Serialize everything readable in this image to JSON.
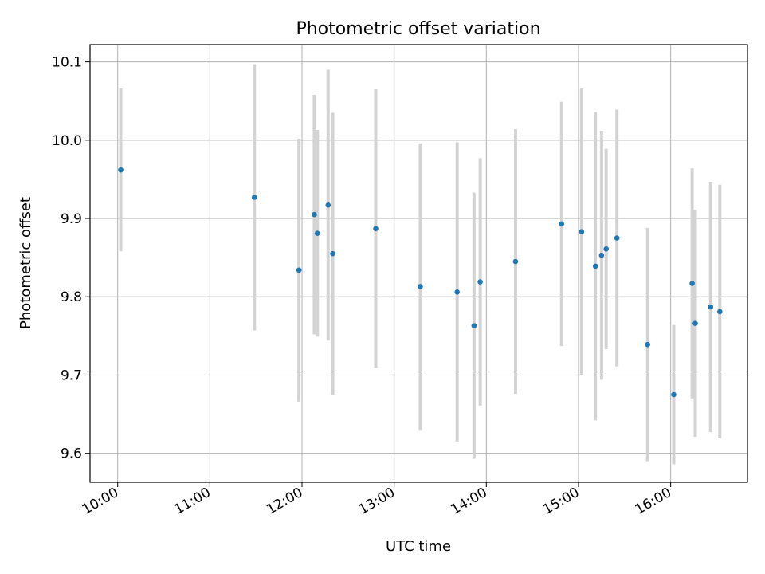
{
  "chart_data": {
    "type": "scatter",
    "title": "Photometric offset variation",
    "xlabel": "UTC time",
    "ylabel": "Photometric offset",
    "x_unit": "hours UTC",
    "xlim": [
      "09:42",
      "16:50"
    ],
    "ylim": [
      9.563,
      10.122
    ],
    "x_ticks": [
      "10:00",
      "11:00",
      "12:00",
      "13:00",
      "14:00",
      "15:00",
      "16:00"
    ],
    "y_ticks": [
      "9.6",
      "9.7",
      "9.8",
      "9.9",
      "10.0",
      "10.1"
    ],
    "grid": true,
    "colors": {
      "point": "#1f77b4",
      "errorbar": "#d3d3d3",
      "grid": "#b0b0b0"
    },
    "points": [
      {
        "t": "10:02",
        "y": 9.962,
        "err": 0.104
      },
      {
        "t": "11:29",
        "y": 9.927,
        "err": 0.17
      },
      {
        "t": "11:58",
        "y": 9.834,
        "err": 0.168
      },
      {
        "t": "12:08",
        "y": 9.905,
        "err": 0.153
      },
      {
        "t": "12:10",
        "y": 9.881,
        "err": 0.132
      },
      {
        "t": "12:17",
        "y": 9.917,
        "err": 0.173
      },
      {
        "t": "12:20",
        "y": 9.855,
        "err": 0.18
      },
      {
        "t": "12:48",
        "y": 9.887,
        "err": 0.178
      },
      {
        "t": "13:17",
        "y": 9.813,
        "err": 0.183
      },
      {
        "t": "13:41",
        "y": 9.806,
        "err": 0.191
      },
      {
        "t": "13:52",
        "y": 9.763,
        "err": 0.17
      },
      {
        "t": "13:56",
        "y": 9.819,
        "err": 0.158
      },
      {
        "t": "14:19",
        "y": 9.845,
        "err": 0.169
      },
      {
        "t": "14:49",
        "y": 9.893,
        "err": 0.156
      },
      {
        "t": "15:02",
        "y": 9.883,
        "err": 0.183
      },
      {
        "t": "15:11",
        "y": 9.839,
        "err": 0.197
      },
      {
        "t": "15:15",
        "y": 9.853,
        "err": 0.159
      },
      {
        "t": "15:18",
        "y": 9.861,
        "err": 0.128
      },
      {
        "t": "15:25",
        "y": 9.875,
        "err": 0.164
      },
      {
        "t": "15:45",
        "y": 9.739,
        "err": 0.149
      },
      {
        "t": "16:02",
        "y": 9.675,
        "err": 0.089
      },
      {
        "t": "16:14",
        "y": 9.817,
        "err": 0.147
      },
      {
        "t": "16:16",
        "y": 9.766,
        "err": 0.145
      },
      {
        "t": "16:26",
        "y": 9.787,
        "err": 0.16
      },
      {
        "t": "16:32",
        "y": 9.781,
        "err": 0.162
      }
    ]
  }
}
